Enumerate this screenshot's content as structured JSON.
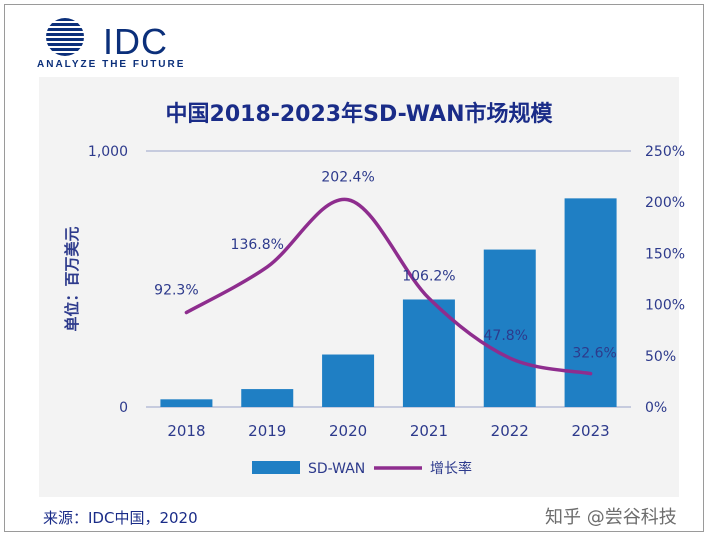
{
  "header": {
    "logo_text": "IDC",
    "logo_tagline": "ANALYZE THE FUTURE"
  },
  "footer": {
    "source": "来源：IDC中国，2020",
    "watermark": "知乎 @尝谷科技"
  },
  "colors": {
    "bar": "#1f7fc4",
    "line": "#8e2d8e",
    "title": "#1a2c88",
    "axis_text": "#2d3a8c",
    "panel": "#f3f3f3"
  },
  "chart_data": {
    "type": "bar",
    "title": "中国2018-2023年SD-WAN市场规模",
    "ylabel": "单位：百万美元",
    "categories": [
      "2018",
      "2019",
      "2020",
      "2021",
      "2022",
      "2023"
    ],
    "left_axis": {
      "ylim": [
        0,
        1000
      ],
      "ticks": [
        "0",
        "1,000"
      ],
      "tick_values": [
        0,
        1000
      ]
    },
    "right_axis": {
      "ylim": [
        0,
        250
      ],
      "ticks": [
        "0%",
        "50%",
        "100%",
        "150%",
        "200%",
        "250%"
      ],
      "tick_values": [
        0,
        50,
        100,
        150,
        200,
        250
      ]
    },
    "series": [
      {
        "name": "SD-WAN",
        "kind": "bar",
        "axis": "left",
        "values": [
          30,
          70,
          205,
          420,
          615,
          815
        ]
      },
      {
        "name": "增长率",
        "kind": "line",
        "axis": "right",
        "values": [
          92.3,
          136.8,
          202.4,
          106.2,
          47.8,
          32.6
        ],
        "labels": [
          "92.3%",
          "136.8%",
          "202.4%",
          "106.2%",
          "47.8%",
          "32.6%"
        ]
      }
    ],
    "legend": {
      "placement": "bottom",
      "items": [
        "SD-WAN",
        "增长率"
      ]
    },
    "grid": false
  }
}
